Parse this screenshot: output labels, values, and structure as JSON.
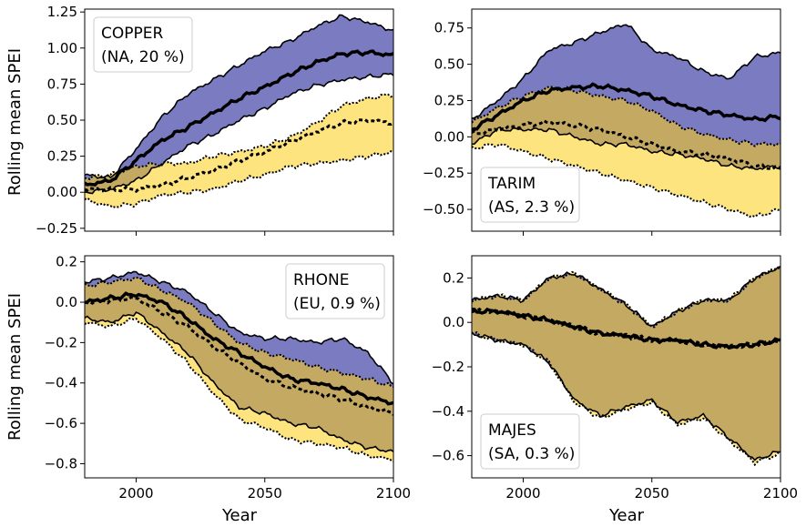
{
  "figure": {
    "ylabel": "Rolling mean SPEI",
    "xlabel": "Year",
    "colors": {
      "blue_band": "#7b7bc2",
      "yellow_band": "#fde47f",
      "overlap_band": "#c4a962",
      "line": "#000000"
    }
  },
  "chart_data": [
    {
      "type": "area",
      "name": "COPPER",
      "region": "(NA, 20 %)",
      "legend_position": "top-left",
      "xlim": [
        1980,
        2100
      ],
      "ylim": [
        -0.27,
        1.27
      ],
      "xticks": [
        2000,
        2050,
        2100
      ],
      "show_xtick_labels": false,
      "yticks": [
        -0.25,
        0.0,
        0.25,
        0.5,
        0.75,
        1.0,
        1.25
      ],
      "ytick_labels": [
        "−0.25",
        "0.00",
        "0.25",
        "0.50",
        "0.75",
        "1.00",
        "1.25"
      ],
      "x": [
        1980,
        1990,
        2000,
        2010,
        2020,
        2030,
        2040,
        2050,
        2060,
        2070,
        2080,
        2090,
        2100
      ],
      "series": [
        {
          "role": "blue_upper",
          "values": [
            0.12,
            0.1,
            0.3,
            0.52,
            0.68,
            0.78,
            0.88,
            0.98,
            1.05,
            1.15,
            1.22,
            1.18,
            1.12
          ]
        },
        {
          "role": "blue_median",
          "values": [
            0.05,
            0.08,
            0.22,
            0.36,
            0.45,
            0.55,
            0.65,
            0.73,
            0.82,
            0.9,
            0.96,
            0.97,
            0.95
          ]
        },
        {
          "role": "blue_lower",
          "values": [
            0.0,
            0.02,
            0.08,
            0.2,
            0.32,
            0.4,
            0.5,
            0.58,
            0.68,
            0.74,
            0.78,
            0.8,
            0.82
          ]
        },
        {
          "role": "yellow_upper",
          "values": [
            0.1,
            0.12,
            0.18,
            0.2,
            0.2,
            0.25,
            0.28,
            0.32,
            0.38,
            0.48,
            0.6,
            0.65,
            0.68
          ]
        },
        {
          "role": "yellow_median",
          "values": [
            0.02,
            0.02,
            0.02,
            0.05,
            0.1,
            0.15,
            0.22,
            0.28,
            0.35,
            0.42,
            0.48,
            0.5,
            0.48
          ]
        },
        {
          "role": "yellow_lower",
          "values": [
            -0.05,
            -0.1,
            -0.08,
            -0.02,
            0.0,
            0.02,
            0.08,
            0.12,
            0.18,
            0.2,
            0.22,
            0.25,
            0.28
          ]
        }
      ]
    },
    {
      "type": "area",
      "name": "TARIM",
      "region": "(AS, 2.3 %)",
      "legend_position": "bottom-left",
      "xlim": [
        1980,
        2100
      ],
      "ylim": [
        -0.65,
        0.88
      ],
      "xticks": [
        2000,
        2050,
        2100
      ],
      "show_xtick_labels": false,
      "yticks": [
        -0.5,
        -0.25,
        0.0,
        0.25,
        0.5,
        0.75
      ],
      "ytick_labels": [
        "−0.50",
        "−0.25",
        "0.00",
        "0.25",
        "0.50",
        "0.75"
      ],
      "x": [
        1980,
        1990,
        2000,
        2010,
        2020,
        2030,
        2040,
        2050,
        2060,
        2070,
        2080,
        2090,
        2100
      ],
      "series": [
        {
          "role": "blue_upper",
          "values": [
            0.12,
            0.25,
            0.4,
            0.6,
            0.65,
            0.72,
            0.78,
            0.6,
            0.55,
            0.45,
            0.4,
            0.55,
            0.58
          ]
        },
        {
          "role": "blue_median",
          "values": [
            0.05,
            0.15,
            0.25,
            0.32,
            0.34,
            0.35,
            0.32,
            0.28,
            0.22,
            0.18,
            0.15,
            0.12,
            0.14
          ]
        },
        {
          "role": "blue_lower",
          "values": [
            -0.05,
            0.05,
            0.05,
            0.05,
            0.0,
            -0.05,
            -0.05,
            -0.1,
            -0.12,
            -0.15,
            -0.2,
            -0.22,
            -0.2
          ]
        },
        {
          "role": "yellow_upper",
          "values": [
            0.1,
            0.2,
            0.28,
            0.34,
            0.32,
            0.28,
            0.25,
            0.18,
            0.08,
            0.02,
            -0.02,
            -0.05,
            -0.05
          ]
        },
        {
          "role": "yellow_median",
          "values": [
            0.02,
            0.05,
            0.08,
            0.1,
            0.08,
            0.05,
            0.0,
            -0.05,
            -0.1,
            -0.12,
            -0.15,
            -0.2,
            -0.22
          ]
        },
        {
          "role": "yellow_lower",
          "values": [
            -0.08,
            -0.05,
            -0.1,
            -0.15,
            -0.2,
            -0.25,
            -0.3,
            -0.35,
            -0.4,
            -0.45,
            -0.5,
            -0.55,
            -0.5
          ]
        }
      ]
    },
    {
      "type": "area",
      "name": "RHONE",
      "region": "(EU, 0.9 %)",
      "legend_position": "top-right",
      "xlim": [
        1980,
        2100
      ],
      "ylim": [
        -0.87,
        0.23
      ],
      "xticks": [
        2000,
        2050,
        2100
      ],
      "show_xtick_labels": false,
      "yticks": [
        -0.8,
        -0.6,
        -0.4,
        -0.2,
        0.0,
        0.2
      ],
      "ytick_labels": [
        "−0.8",
        "−0.6",
        "−0.4",
        "−0.2",
        "0.0",
        "0.2"
      ],
      "x": [
        1980,
        1990,
        2000,
        2010,
        2020,
        2030,
        2040,
        2050,
        2060,
        2070,
        2080,
        2090,
        2100
      ],
      "series": [
        {
          "role": "blue_upper",
          "values": [
            0.1,
            0.12,
            0.15,
            0.1,
            0.05,
            -0.05,
            -0.15,
            -0.18,
            -0.18,
            -0.2,
            -0.18,
            -0.25,
            -0.4
          ]
        },
        {
          "role": "blue_median",
          "values": [
            0.0,
            0.02,
            0.04,
            0.0,
            -0.08,
            -0.18,
            -0.25,
            -0.32,
            -0.38,
            -0.4,
            -0.43,
            -0.47,
            -0.5
          ]
        },
        {
          "role": "blue_lower",
          "values": [
            -0.08,
            -0.1,
            -0.05,
            -0.15,
            -0.25,
            -0.4,
            -0.52,
            -0.55,
            -0.6,
            -0.62,
            -0.68,
            -0.72,
            -0.74
          ]
        },
        {
          "role": "yellow_upper",
          "values": [
            0.08,
            0.1,
            0.12,
            0.06,
            0.0,
            -0.1,
            -0.2,
            -0.25,
            -0.28,
            -0.32,
            -0.35,
            -0.38,
            -0.42
          ]
        },
        {
          "role": "yellow_median",
          "values": [
            0.0,
            0.01,
            0.02,
            -0.05,
            -0.12,
            -0.22,
            -0.3,
            -0.38,
            -0.42,
            -0.45,
            -0.48,
            -0.52,
            -0.55
          ]
        },
        {
          "role": "yellow_lower",
          "values": [
            -0.1,
            -0.12,
            -0.08,
            -0.18,
            -0.3,
            -0.45,
            -0.58,
            -0.62,
            -0.68,
            -0.7,
            -0.72,
            -0.76,
            -0.78
          ]
        }
      ]
    },
    {
      "type": "area",
      "name": "MAJES",
      "region": "(SA, 0.3 %)",
      "legend_position": "bottom-left",
      "xlim": [
        1980,
        2100
      ],
      "ylim": [
        -0.7,
        0.3
      ],
      "xticks": [
        2000,
        2050,
        2100
      ],
      "show_xtick_labels": true,
      "xtick_labels": [
        "2000",
        "2050",
        "2100"
      ],
      "yticks": [
        -0.6,
        -0.4,
        -0.2,
        0.0,
        0.2
      ],
      "ytick_labels": [
        "−0.6",
        "−0.4",
        "−0.2",
        "0.0",
        "0.2"
      ],
      "x": [
        1980,
        1990,
        2000,
        2010,
        2020,
        2030,
        2040,
        2050,
        2060,
        2070,
        2080,
        2090,
        2100
      ],
      "series": [
        {
          "role": "blue_upper",
          "values": [
            0.1,
            0.12,
            0.1,
            0.2,
            0.22,
            0.15,
            0.08,
            -0.02,
            0.05,
            0.1,
            0.1,
            0.2,
            0.25
          ]
        },
        {
          "role": "blue_median",
          "values": [
            0.05,
            0.05,
            0.03,
            0.01,
            -0.02,
            -0.05,
            -0.06,
            -0.08,
            -0.08,
            -0.1,
            -0.11,
            -0.1,
            -0.08
          ]
        },
        {
          "role": "blue_lower",
          "values": [
            -0.05,
            -0.08,
            -0.1,
            -0.18,
            -0.35,
            -0.42,
            -0.38,
            -0.35,
            -0.45,
            -0.42,
            -0.52,
            -0.62,
            -0.58
          ]
        },
        {
          "role": "yellow_upper",
          "values": [
            0.1,
            0.12,
            0.1,
            0.2,
            0.22,
            0.15,
            0.08,
            -0.02,
            0.05,
            0.1,
            0.1,
            0.2,
            0.25
          ]
        },
        {
          "role": "yellow_median",
          "values": [
            0.05,
            0.05,
            0.03,
            0.01,
            -0.02,
            -0.05,
            -0.06,
            -0.08,
            -0.08,
            -0.1,
            -0.11,
            -0.1,
            -0.08
          ]
        },
        {
          "role": "yellow_lower",
          "values": [
            -0.05,
            -0.08,
            -0.1,
            -0.18,
            -0.36,
            -0.43,
            -0.39,
            -0.36,
            -0.46,
            -0.43,
            -0.53,
            -0.63,
            -0.59
          ]
        }
      ]
    }
  ]
}
